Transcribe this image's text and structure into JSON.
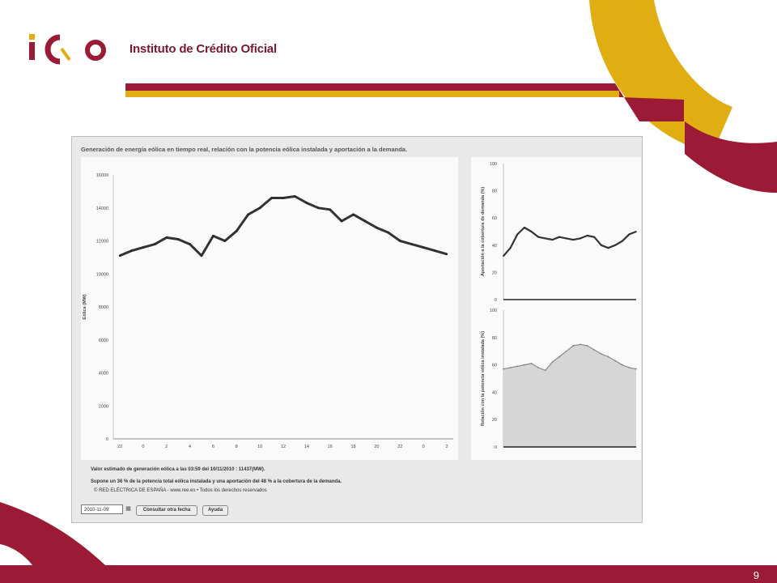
{
  "header": {
    "brand_name": "Instituto de Crédito Oficial",
    "logo_text": "ICO"
  },
  "colors": {
    "brand_red": "#9b1a35",
    "brand_yellow": "#e0ad12"
  },
  "screenshot": {
    "title": "Generación de energía eólica en tiempo real, relación con la potencia eólica instalada y aportación a la demanda.",
    "note1": "Valor estimado de generación eólica a las 03:59 del 10/11/2010 : 11437(MW).",
    "note2": "Supone un 36 % de la potencia total eólica instalada y una aportación del 48 % a la cobertura de la demanda.",
    "note3": "© RED ELÉCTRICA DE ESPAÑA - www.ree.es • Todos los derechos reservados",
    "date_value": "2010-11-09",
    "btn_consult": "Consultar otra fecha",
    "btn_help": "Ayuda"
  },
  "footer": {
    "page_number": "9"
  },
  "chart_data": [
    {
      "type": "line",
      "ylabel": "Eólica (MW)",
      "ylim": [
        0,
        16000
      ],
      "yticks": [
        0,
        2000,
        4000,
        6000,
        8000,
        10000,
        12000,
        14000,
        16000
      ],
      "xticks": [
        "22",
        "0",
        "2",
        "4",
        "6",
        "8",
        "10",
        "12",
        "14",
        "16",
        "18",
        "20",
        "22",
        "0",
        "2"
      ],
      "x": [
        0,
        0.5,
        1,
        1.5,
        2,
        2.5,
        3,
        3.5,
        4,
        4.5,
        5,
        5.5,
        6,
        6.5,
        7,
        7.5,
        8,
        8.5,
        9,
        9.5,
        10,
        10.5,
        11,
        11.5,
        12,
        12.5,
        13,
        13.5,
        14
      ],
      "values": [
        11100,
        11400,
        11600,
        11800,
        12200,
        12100,
        11800,
        11100,
        12300,
        12000,
        12600,
        13600,
        14000,
        14600,
        14600,
        14700,
        14300,
        14000,
        13900,
        13200,
        13600,
        13200,
        12800,
        12500,
        12000,
        11800,
        11600,
        11400,
        11200
      ]
    },
    {
      "type": "line",
      "ylabel": "Aportación a la cobertura de demanda (%)",
      "ylim": [
        0,
        100
      ],
      "yticks": [
        0,
        20,
        40,
        60,
        80,
        100
      ],
      "values": [
        32,
        38,
        48,
        53,
        50,
        46,
        45,
        44,
        46,
        45,
        44,
        45,
        47,
        46,
        40,
        38,
        40,
        43,
        48,
        50
      ]
    },
    {
      "type": "area",
      "ylabel": "Relación con la potencia eólica instalada (%)",
      "ylim": [
        0,
        100
      ],
      "yticks": [
        0,
        20,
        40,
        60,
        80,
        100
      ],
      "values": [
        57,
        58,
        59,
        60,
        61,
        58,
        56,
        62,
        66,
        70,
        74,
        75,
        74,
        71,
        68,
        66,
        63,
        60,
        58,
        57
      ]
    }
  ]
}
